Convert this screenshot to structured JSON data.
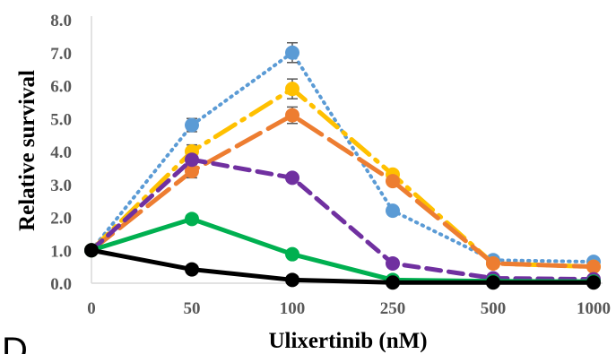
{
  "chart_data": {
    "type": "line",
    "xlabel": "Ulixertinib (nM)",
    "ylabel": "Relative survival",
    "categories": [
      "0",
      "50",
      "100",
      "250",
      "500",
      "1000"
    ],
    "ylim": [
      0,
      8
    ],
    "y_ticks": [
      "0.0",
      "1.0",
      "2.0",
      "3.0",
      "4.0",
      "5.0",
      "6.0",
      "7.0",
      "8.0"
    ],
    "grid": false,
    "legend": "none",
    "series": [
      {
        "color": "#5B9BD5",
        "style": "dotted",
        "values": [
          1.0,
          4.8,
          7.0,
          2.2,
          0.7,
          0.65
        ],
        "errors": [
          0,
          0.2,
          0.3,
          0,
          0,
          0
        ]
      },
      {
        "color": "#FFC000",
        "style": "dashdot",
        "values": [
          1.0,
          4.0,
          5.9,
          3.3,
          0.6,
          0.5
        ],
        "errors": [
          0,
          0.2,
          0.3,
          0,
          0,
          0
        ]
      },
      {
        "color": "#ED7D31",
        "style": "longdash",
        "values": [
          1.0,
          3.4,
          5.1,
          3.1,
          0.6,
          0.5
        ],
        "errors": [
          0,
          0.2,
          0.25,
          0,
          0,
          0
        ]
      },
      {
        "color": "#7030A0",
        "style": "dashed",
        "values": [
          1.0,
          3.75,
          3.2,
          0.6,
          0.15,
          0.12
        ],
        "errors": [
          0,
          0.1,
          0.1,
          0,
          0,
          0
        ]
      },
      {
        "color": "#00B050",
        "style": "solid",
        "values": [
          1.0,
          1.95,
          0.88,
          0.1,
          0.06,
          0.05
        ],
        "errors": [
          0,
          0,
          0,
          0,
          0,
          0
        ]
      },
      {
        "color": "#000000",
        "style": "solid",
        "values": [
          1.0,
          0.42,
          0.1,
          0.02,
          0.02,
          0.02
        ],
        "errors": [
          0,
          0,
          0,
          0,
          0,
          0
        ]
      }
    ]
  },
  "panel_letter": "D"
}
